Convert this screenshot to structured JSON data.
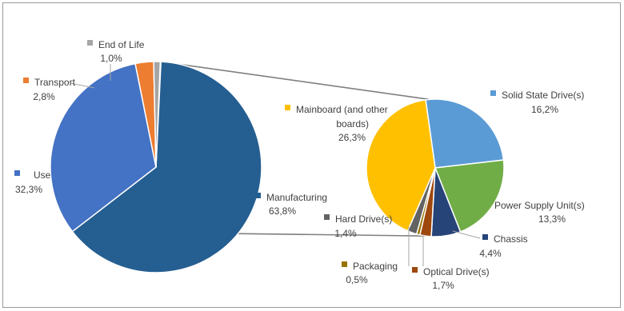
{
  "chart_data": {
    "type": "pie",
    "variant": "pie-of-pie",
    "main_pie": {
      "slices": [
        {
          "label": "Manufacturing",
          "value": "63,8%",
          "pct": 63.8,
          "color": "#255e91"
        },
        {
          "label": "Use",
          "value": "32,3%",
          "pct": 32.3,
          "color": "#4472c4"
        },
        {
          "label": "Transport",
          "value": "2,8%",
          "pct": 2.8,
          "color": "#ed7d31"
        },
        {
          "label": "End of Life",
          "value": "1,0%",
          "pct": 1.0,
          "color": "#a5a5a5"
        }
      ]
    },
    "secondary_pie": {
      "breakdown_of": "Manufacturing",
      "slices": [
        {
          "label": "Solid State Drive(s)",
          "value": "16,2%",
          "pct": 16.2,
          "color": "#5b9bd5"
        },
        {
          "label": "Power Supply Unit(s)",
          "value": "13,3%",
          "pct": 13.3,
          "color": "#70ad47"
        },
        {
          "label": "Chassis",
          "value": "4,4%",
          "pct": 4.4,
          "color": "#264478"
        },
        {
          "label": "Optical Drive(s)",
          "value": "1,7%",
          "pct": 1.7,
          "color": "#9e480e"
        },
        {
          "label": "Packaging",
          "value": "0,5%",
          "pct": 0.5,
          "color": "#997300"
        },
        {
          "label": "Hard Drive(s)",
          "value": "1,4%",
          "pct": 1.4,
          "color": "#636363"
        },
        {
          "label": "Mainboard (and other boards)",
          "value": "26,3%",
          "pct": 26.3,
          "color": "#ffc000"
        }
      ]
    },
    "connector_color": "#7f7f7f",
    "legend": "none",
    "grid": false
  }
}
